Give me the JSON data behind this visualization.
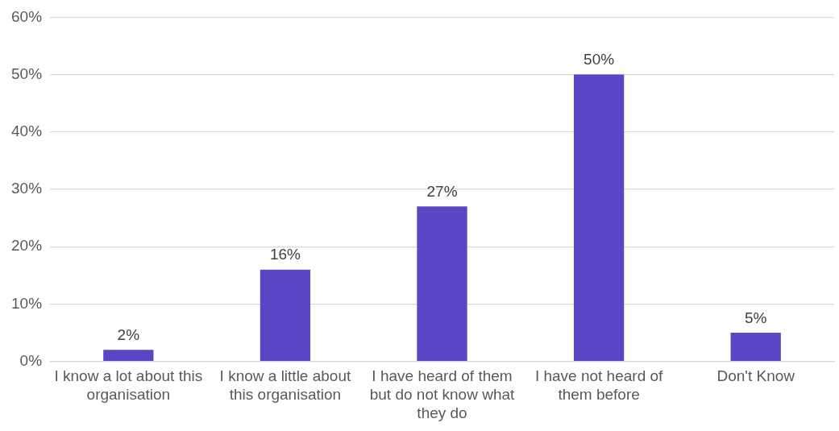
{
  "chart_data": {
    "type": "bar",
    "categories": [
      "I know a lot about this organisation",
      "I know a little about this organisation",
      "I have heard of them but do not know what they do",
      "I have not heard of them before",
      "Don't Know"
    ],
    "values": [
      2,
      16,
      27,
      50,
      5
    ],
    "value_labels": [
      "2%",
      "16%",
      "27%",
      "50%",
      "5%"
    ],
    "color": "#5b45c4",
    "ylim": [
      0,
      60
    ],
    "yticks": [
      {
        "value": 0,
        "label": "0%"
      },
      {
        "value": 10,
        "label": "10%"
      },
      {
        "value": 20,
        "label": "20%"
      },
      {
        "value": 30,
        "label": "30%"
      },
      {
        "value": 40,
        "label": "40%"
      },
      {
        "value": 50,
        "label": "50%"
      },
      {
        "value": 60,
        "label": "60%"
      }
    ],
    "grid": "y"
  }
}
